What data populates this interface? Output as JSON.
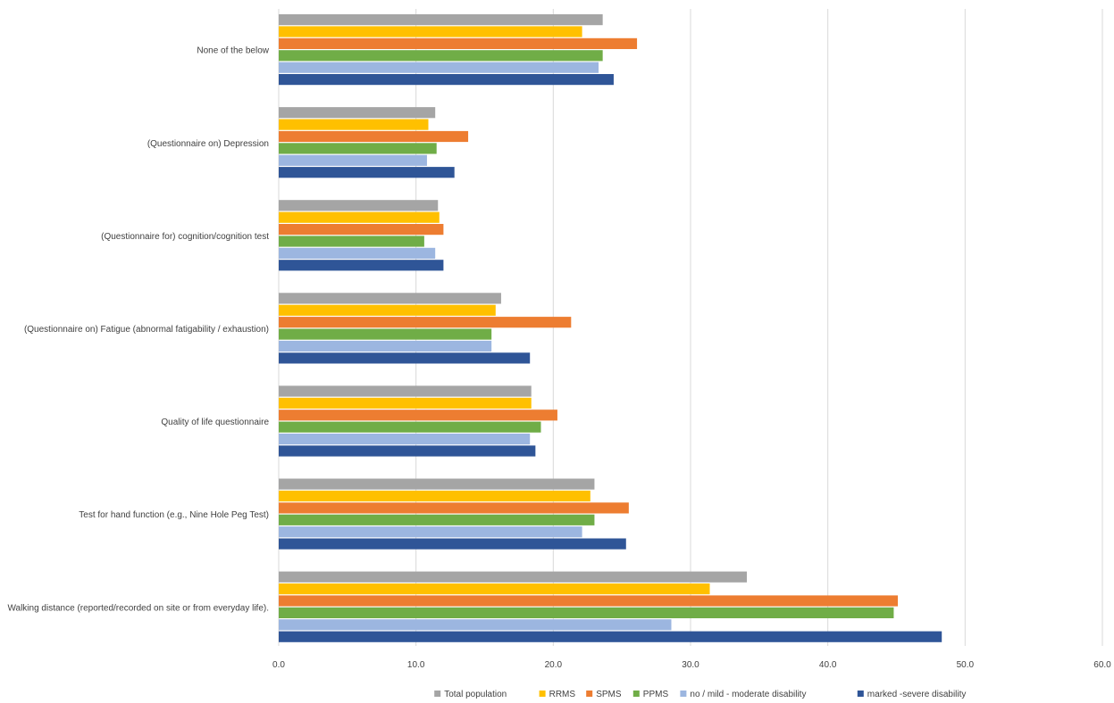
{
  "chart_data": {
    "type": "bar",
    "orientation": "horizontal",
    "title": "",
    "xlabel": "",
    "ylabel": "",
    "xlim": [
      0,
      60
    ],
    "xticks": [
      "0.0",
      "10.0",
      "20.0",
      "30.0",
      "40.0",
      "50.0",
      "60.0"
    ],
    "grid": true,
    "legend_position": "bottom",
    "categories": [
      "None of the below",
      "(Questionnaire on) Depression",
      "(Questionnaire for) cognition/cognition test",
      "(Questionnaire on) Fatigue (abnormal fatigability / exhaustion)",
      "Quality of life questionnaire",
      "Test for hand function (e.g., Nine Hole Peg Test)",
      "Walking distance (reported/recorded on site or from everyday life)."
    ],
    "series": [
      {
        "name": "Total population",
        "color": "#a5a5a5",
        "values": [
          23.6,
          11.4,
          11.6,
          16.2,
          18.4,
          23.0,
          34.1
        ]
      },
      {
        "name": "RRMS",
        "color": "#ffc000",
        "values": [
          22.1,
          10.9,
          11.7,
          15.8,
          18.4,
          22.7,
          31.4
        ]
      },
      {
        "name": "SPMS",
        "color": "#ed7d31",
        "values": [
          26.1,
          13.8,
          12.0,
          21.3,
          20.3,
          25.5,
          45.1
        ]
      },
      {
        "name": "PPMS",
        "color": "#70ad47",
        "values": [
          23.6,
          11.5,
          10.6,
          15.5,
          19.1,
          23.0,
          44.8
        ]
      },
      {
        "name": "no / mild - moderate disability",
        "color": "#9cb6e0",
        "values": [
          23.3,
          10.8,
          11.4,
          15.5,
          18.3,
          22.1,
          28.6
        ]
      },
      {
        "name": "marked -severe disability",
        "color": "#2f5597",
        "values": [
          24.4,
          12.8,
          12.0,
          18.3,
          18.7,
          25.3,
          48.3
        ]
      }
    ]
  }
}
